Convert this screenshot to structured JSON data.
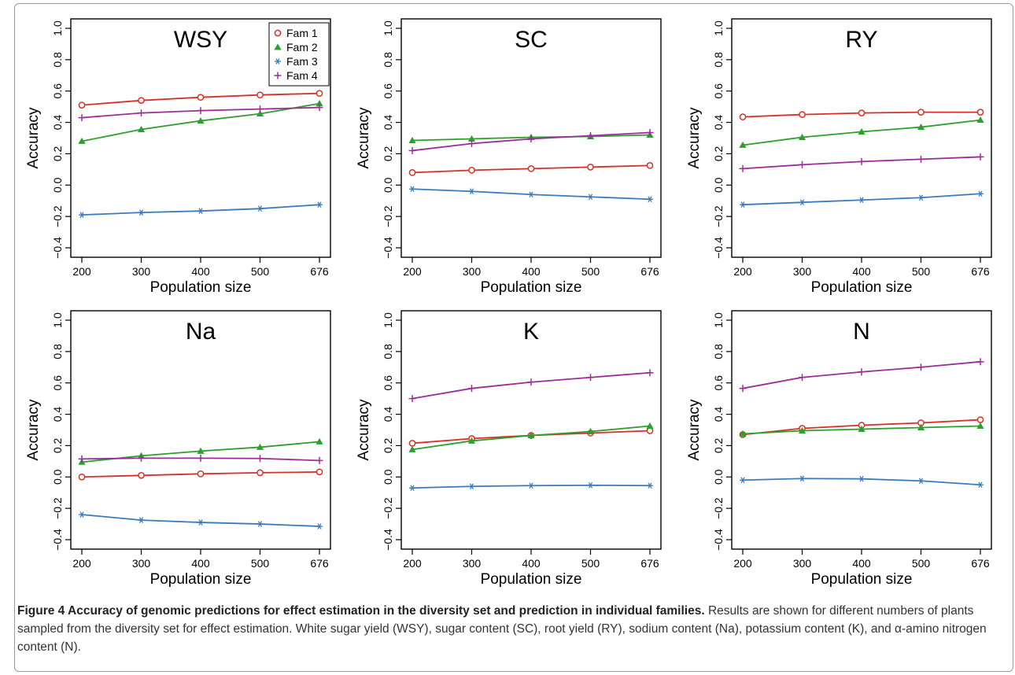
{
  "chart_data": [
    {
      "type": "line",
      "title": "WSY",
      "xlabel": "Population size",
      "ylabel": "Accuracy",
      "categories": [
        "200",
        "300",
        "400",
        "500",
        "676"
      ],
      "ylim": [
        -0.4,
        1.0
      ],
      "yticks": [
        "−0.4",
        "−0.2",
        "0.0",
        "0.2",
        "0.4",
        "0.6",
        "0.8",
        "1.0"
      ],
      "legend": "top-right",
      "series": [
        {
          "name": "Fam 1",
          "values": [
            0.51,
            0.54,
            0.56,
            0.575,
            0.585
          ]
        },
        {
          "name": "Fam 2",
          "values": [
            0.28,
            0.355,
            0.41,
            0.455,
            0.52
          ]
        },
        {
          "name": "Fam 3",
          "values": [
            -0.19,
            -0.175,
            -0.165,
            -0.15,
            -0.125
          ]
        },
        {
          "name": "Fam 4",
          "values": [
            0.43,
            0.46,
            0.475,
            0.485,
            0.495
          ]
        }
      ]
    },
    {
      "type": "line",
      "title": "SC",
      "xlabel": "Population size",
      "ylabel": "Accuracy",
      "categories": [
        "200",
        "300",
        "400",
        "500",
        "676"
      ],
      "ylim": [
        -0.4,
        1.0
      ],
      "yticks": [
        "−0.4",
        "−0.2",
        "0.0",
        "0.2",
        "0.4",
        "0.6",
        "0.8",
        "1.0"
      ],
      "series": [
        {
          "name": "Fam 1",
          "values": [
            0.08,
            0.095,
            0.105,
            0.115,
            0.125
          ]
        },
        {
          "name": "Fam 2",
          "values": [
            0.285,
            0.295,
            0.305,
            0.31,
            0.32
          ]
        },
        {
          "name": "Fam 3",
          "values": [
            -0.025,
            -0.04,
            -0.06,
            -0.075,
            -0.09
          ]
        },
        {
          "name": "Fam 4",
          "values": [
            0.22,
            0.265,
            0.295,
            0.315,
            0.335
          ]
        }
      ]
    },
    {
      "type": "line",
      "title": "RY",
      "xlabel": "Population size",
      "ylabel": "Accuracy",
      "categories": [
        "200",
        "300",
        "400",
        "500",
        "676"
      ],
      "ylim": [
        -0.4,
        1.0
      ],
      "yticks": [
        "−0.4",
        "−0.2",
        "0.0",
        "0.2",
        "0.4",
        "0.6",
        "0.8",
        "1.0"
      ],
      "series": [
        {
          "name": "Fam 1",
          "values": [
            0.435,
            0.45,
            0.46,
            0.465,
            0.465
          ]
        },
        {
          "name": "Fam 2",
          "values": [
            0.255,
            0.305,
            0.34,
            0.37,
            0.415
          ]
        },
        {
          "name": "Fam 3",
          "values": [
            -0.125,
            -0.11,
            -0.095,
            -0.08,
            -0.055
          ]
        },
        {
          "name": "Fam 4",
          "values": [
            0.105,
            0.13,
            0.15,
            0.165,
            0.18
          ]
        }
      ]
    },
    {
      "type": "line",
      "title": "Na",
      "xlabel": "Population size",
      "ylabel": "Accuracy",
      "categories": [
        "200",
        "300",
        "400",
        "500",
        "676"
      ],
      "ylim": [
        -0.4,
        1.0
      ],
      "yticks": [
        "−0.4",
        "−0.2",
        "0.0",
        "0.2",
        "0.4",
        "0.6",
        "0.8",
        "1.0"
      ],
      "series": [
        {
          "name": "Fam 1",
          "values": [
            0.0,
            0.01,
            0.02,
            0.027,
            0.032
          ]
        },
        {
          "name": "Fam 2",
          "values": [
            0.095,
            0.135,
            0.165,
            0.19,
            0.225
          ]
        },
        {
          "name": "Fam 3",
          "values": [
            -0.24,
            -0.275,
            -0.29,
            -0.3,
            -0.315
          ]
        },
        {
          "name": "Fam 4",
          "values": [
            0.115,
            0.12,
            0.12,
            0.118,
            0.105
          ]
        }
      ]
    },
    {
      "type": "line",
      "title": "K",
      "xlabel": "Population size",
      "ylabel": "Accuracy",
      "categories": [
        "200",
        "300",
        "400",
        "500",
        "676"
      ],
      "ylim": [
        -0.4,
        1.0
      ],
      "yticks": [
        "−0.4",
        "−0.2",
        "0.0",
        "0.2",
        "0.4",
        "0.6",
        "0.8",
        "1.0"
      ],
      "series": [
        {
          "name": "Fam 1",
          "values": [
            0.215,
            0.245,
            0.265,
            0.28,
            0.295
          ]
        },
        {
          "name": "Fam 2",
          "values": [
            0.175,
            0.23,
            0.265,
            0.29,
            0.325
          ]
        },
        {
          "name": "Fam 3",
          "values": [
            -0.07,
            -0.06,
            -0.055,
            -0.053,
            -0.055
          ]
        },
        {
          "name": "Fam 4",
          "values": [
            0.5,
            0.565,
            0.605,
            0.635,
            0.665
          ]
        }
      ]
    },
    {
      "type": "line",
      "title": "N",
      "xlabel": "Population size",
      "ylabel": "Accuracy",
      "categories": [
        "200",
        "300",
        "400",
        "500",
        "676"
      ],
      "ylim": [
        -0.4,
        1.0
      ],
      "yticks": [
        "−0.4",
        "−0.2",
        "0.0",
        "0.2",
        "0.4",
        "0.6",
        "0.8",
        "1.0"
      ],
      "series": [
        {
          "name": "Fam 1",
          "values": [
            0.27,
            0.31,
            0.33,
            0.345,
            0.365
          ]
        },
        {
          "name": "Fam 2",
          "values": [
            0.275,
            0.295,
            0.305,
            0.315,
            0.325
          ]
        },
        {
          "name": "Fam 3",
          "values": [
            -0.02,
            -0.01,
            -0.012,
            -0.025,
            -0.05
          ]
        },
        {
          "name": "Fam 4",
          "values": [
            0.565,
            0.635,
            0.67,
            0.7,
            0.735
          ]
        }
      ]
    }
  ],
  "series_styles": [
    {
      "name": "Fam 1",
      "color": "#d73027",
      "marker": "open-circle"
    },
    {
      "name": "Fam 2",
      "color": "#2ca02c",
      "marker": "filled-triangle"
    },
    {
      "name": "Fam 3",
      "color": "#3a7bbf",
      "marker": "asterisk"
    },
    {
      "name": "Fam 4",
      "color": "#9b2d9b",
      "marker": "plus"
    }
  ],
  "caption": {
    "title": "Figure 4 Accuracy of genomic predictions for effect estimation in the diversity set and prediction in individual families.",
    "text": " Results are shown for different numbers of plants sampled from the diversity set for effect estimation. White sugar yield (WSY), sugar content (SC), root yield (RY), sodium content (Na), potassium content (K), and α-amino nitrogen content (N)."
  }
}
